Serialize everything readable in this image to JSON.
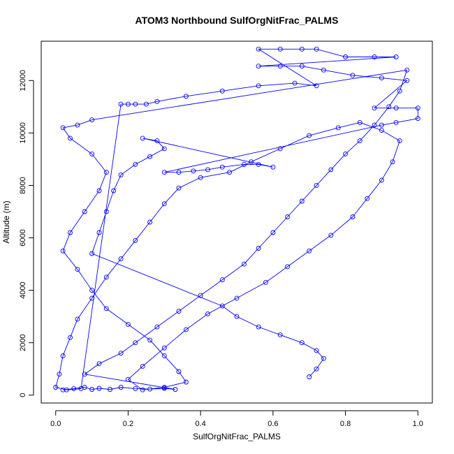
{
  "chart_data": {
    "type": "line",
    "title": "ATOM3 Northbound SulfOrgNitFrac_PALMS",
    "xlabel": "SulfOrgNitFrac_PALMS",
    "ylabel": "Altitude (m)",
    "xlim": [
      -0.04,
      1.04
    ],
    "ylim": [
      -300,
      13500
    ],
    "xticks": [
      0.0,
      0.2,
      0.4,
      0.6,
      0.8,
      1.0
    ],
    "xtick_labels": [
      "0.0",
      "0.2",
      "0.4",
      "0.6",
      "0.8",
      "1.0"
    ],
    "yticks": [
      0,
      2000,
      4000,
      6000,
      8000,
      10000,
      12000
    ],
    "ytick_labels": [
      "0",
      "2000",
      "4000",
      "6000",
      "8000",
      "10000",
      "12000"
    ],
    "grid": false,
    "legend": "none",
    "marker": "open-circle",
    "series": [
      {
        "color": "#0000ff",
        "points": [
          [
            0.02,
            200
          ],
          [
            0.05,
            250
          ],
          [
            0.08,
            300
          ],
          [
            0.1,
            220
          ],
          [
            0.12,
            260
          ],
          [
            0.15,
            220
          ],
          [
            0.18,
            300
          ],
          [
            0.22,
            250
          ],
          [
            0.26,
            230
          ],
          [
            0.3,
            260
          ],
          [
            0.33,
            220
          ],
          [
            0.08,
            800
          ],
          [
            0.12,
            1200
          ],
          [
            0.18,
            1600
          ],
          [
            0.22,
            2000
          ],
          [
            0.28,
            2600
          ],
          [
            0.34,
            3200
          ],
          [
            0.4,
            3800
          ],
          [
            0.46,
            4400
          ],
          [
            0.52,
            5000
          ],
          [
            0.56,
            5600
          ],
          [
            0.6,
            6200
          ],
          [
            0.64,
            6800
          ],
          [
            0.68,
            7400
          ],
          [
            0.72,
            8000
          ],
          [
            0.76,
            8600
          ],
          [
            0.8,
            9200
          ],
          [
            0.84,
            9700
          ],
          [
            0.88,
            10300
          ],
          [
            0.92,
            11000
          ],
          [
            0.95,
            11600
          ],
          [
            0.97,
            12400
          ],
          [
            0.1,
            10500
          ],
          [
            0.06,
            10300
          ],
          [
            0.02,
            10200
          ],
          [
            0.04,
            9800
          ],
          [
            0.1,
            9200
          ],
          [
            0.14,
            8500
          ],
          [
            0.12,
            7800
          ],
          [
            0.08,
            7000
          ],
          [
            0.04,
            6200
          ],
          [
            0.02,
            5500
          ],
          [
            0.06,
            4800
          ],
          [
            0.1,
            4000
          ],
          [
            0.14,
            3300
          ],
          [
            0.2,
            2700
          ],
          [
            0.26,
            2100
          ],
          [
            0.3,
            1500
          ],
          [
            0.34,
            900
          ],
          [
            0.36,
            500
          ],
          [
            0.3,
            300
          ],
          [
            0.24,
            200
          ],
          [
            0.2,
            600
          ],
          [
            0.24,
            1100
          ],
          [
            0.3,
            1800
          ],
          [
            0.36,
            2500
          ],
          [
            0.42,
            3100
          ],
          [
            0.5,
            3700
          ],
          [
            0.58,
            4300
          ],
          [
            0.64,
            4900
          ],
          [
            0.7,
            5500
          ],
          [
            0.76,
            6100
          ],
          [
            0.82,
            6800
          ],
          [
            0.86,
            7500
          ],
          [
            0.9,
            8200
          ],
          [
            0.93,
            8900
          ],
          [
            0.95,
            9700
          ],
          [
            0.9,
            10100
          ],
          [
            0.84,
            10400
          ],
          [
            0.78,
            10200
          ],
          [
            0.7,
            9900
          ],
          [
            0.62,
            9400
          ],
          [
            0.54,
            8900
          ],
          [
            0.48,
            8500
          ],
          [
            0.4,
            8300
          ],
          [
            0.34,
            7900
          ],
          [
            0.3,
            7300
          ],
          [
            0.26,
            6600
          ],
          [
            0.22,
            5900
          ],
          [
            0.18,
            5200
          ],
          [
            0.14,
            4500
          ],
          [
            0.1,
            3700
          ],
          [
            0.06,
            2900
          ],
          [
            0.04,
            2200
          ],
          [
            0.02,
            1500
          ],
          [
            0.01,
            800
          ],
          [
            0.0,
            300
          ],
          [
            0.03,
            200
          ],
          [
            0.07,
            250
          ],
          [
            0.18,
            11100
          ],
          [
            0.2,
            11100
          ],
          [
            0.22,
            11100
          ],
          [
            0.25,
            11100
          ],
          [
            0.28,
            11200
          ],
          [
            0.36,
            11400
          ],
          [
            0.46,
            11600
          ],
          [
            0.56,
            11800
          ],
          [
            0.66,
            11900
          ],
          [
            0.72,
            11800
          ],
          [
            0.56,
            13200
          ],
          [
            0.62,
            13200
          ],
          [
            0.68,
            13200
          ],
          [
            0.72,
            13200
          ],
          [
            0.8,
            12900
          ],
          [
            0.88,
            12900
          ],
          [
            0.94,
            12900
          ],
          [
            0.56,
            12550
          ],
          [
            0.62,
            12550
          ],
          [
            0.68,
            12550
          ],
          [
            0.74,
            12400
          ],
          [
            0.82,
            12200
          ],
          [
            0.9,
            12100
          ],
          [
            0.97,
            12000
          ],
          [
            0.88,
            10950
          ],
          [
            0.94,
            10950
          ],
          [
            1.0,
            10950
          ],
          [
            1.0,
            10550
          ],
          [
            0.94,
            10400
          ],
          [
            0.9,
            10300
          ],
          [
            0.3,
            8500
          ],
          [
            0.34,
            8500
          ],
          [
            0.38,
            8550
          ],
          [
            0.42,
            8600
          ],
          [
            0.46,
            8700
          ],
          [
            0.52,
            8800
          ],
          [
            0.56,
            8800
          ],
          [
            0.6,
            8700
          ],
          [
            0.24,
            9800
          ],
          [
            0.28,
            9700
          ],
          [
            0.3,
            9400
          ],
          [
            0.26,
            9100
          ],
          [
            0.22,
            8800
          ],
          [
            0.18,
            8400
          ],
          [
            0.16,
            7800
          ],
          [
            0.14,
            7000
          ],
          [
            0.12,
            6200
          ],
          [
            0.1,
            5400
          ],
          [
            0.46,
            3400
          ],
          [
            0.5,
            3000
          ],
          [
            0.56,
            2600
          ],
          [
            0.62,
            2300
          ],
          [
            0.68,
            2000
          ],
          [
            0.72,
            1700
          ],
          [
            0.74,
            1400
          ],
          [
            0.72,
            1000
          ],
          [
            0.7,
            700
          ]
        ]
      }
    ]
  }
}
